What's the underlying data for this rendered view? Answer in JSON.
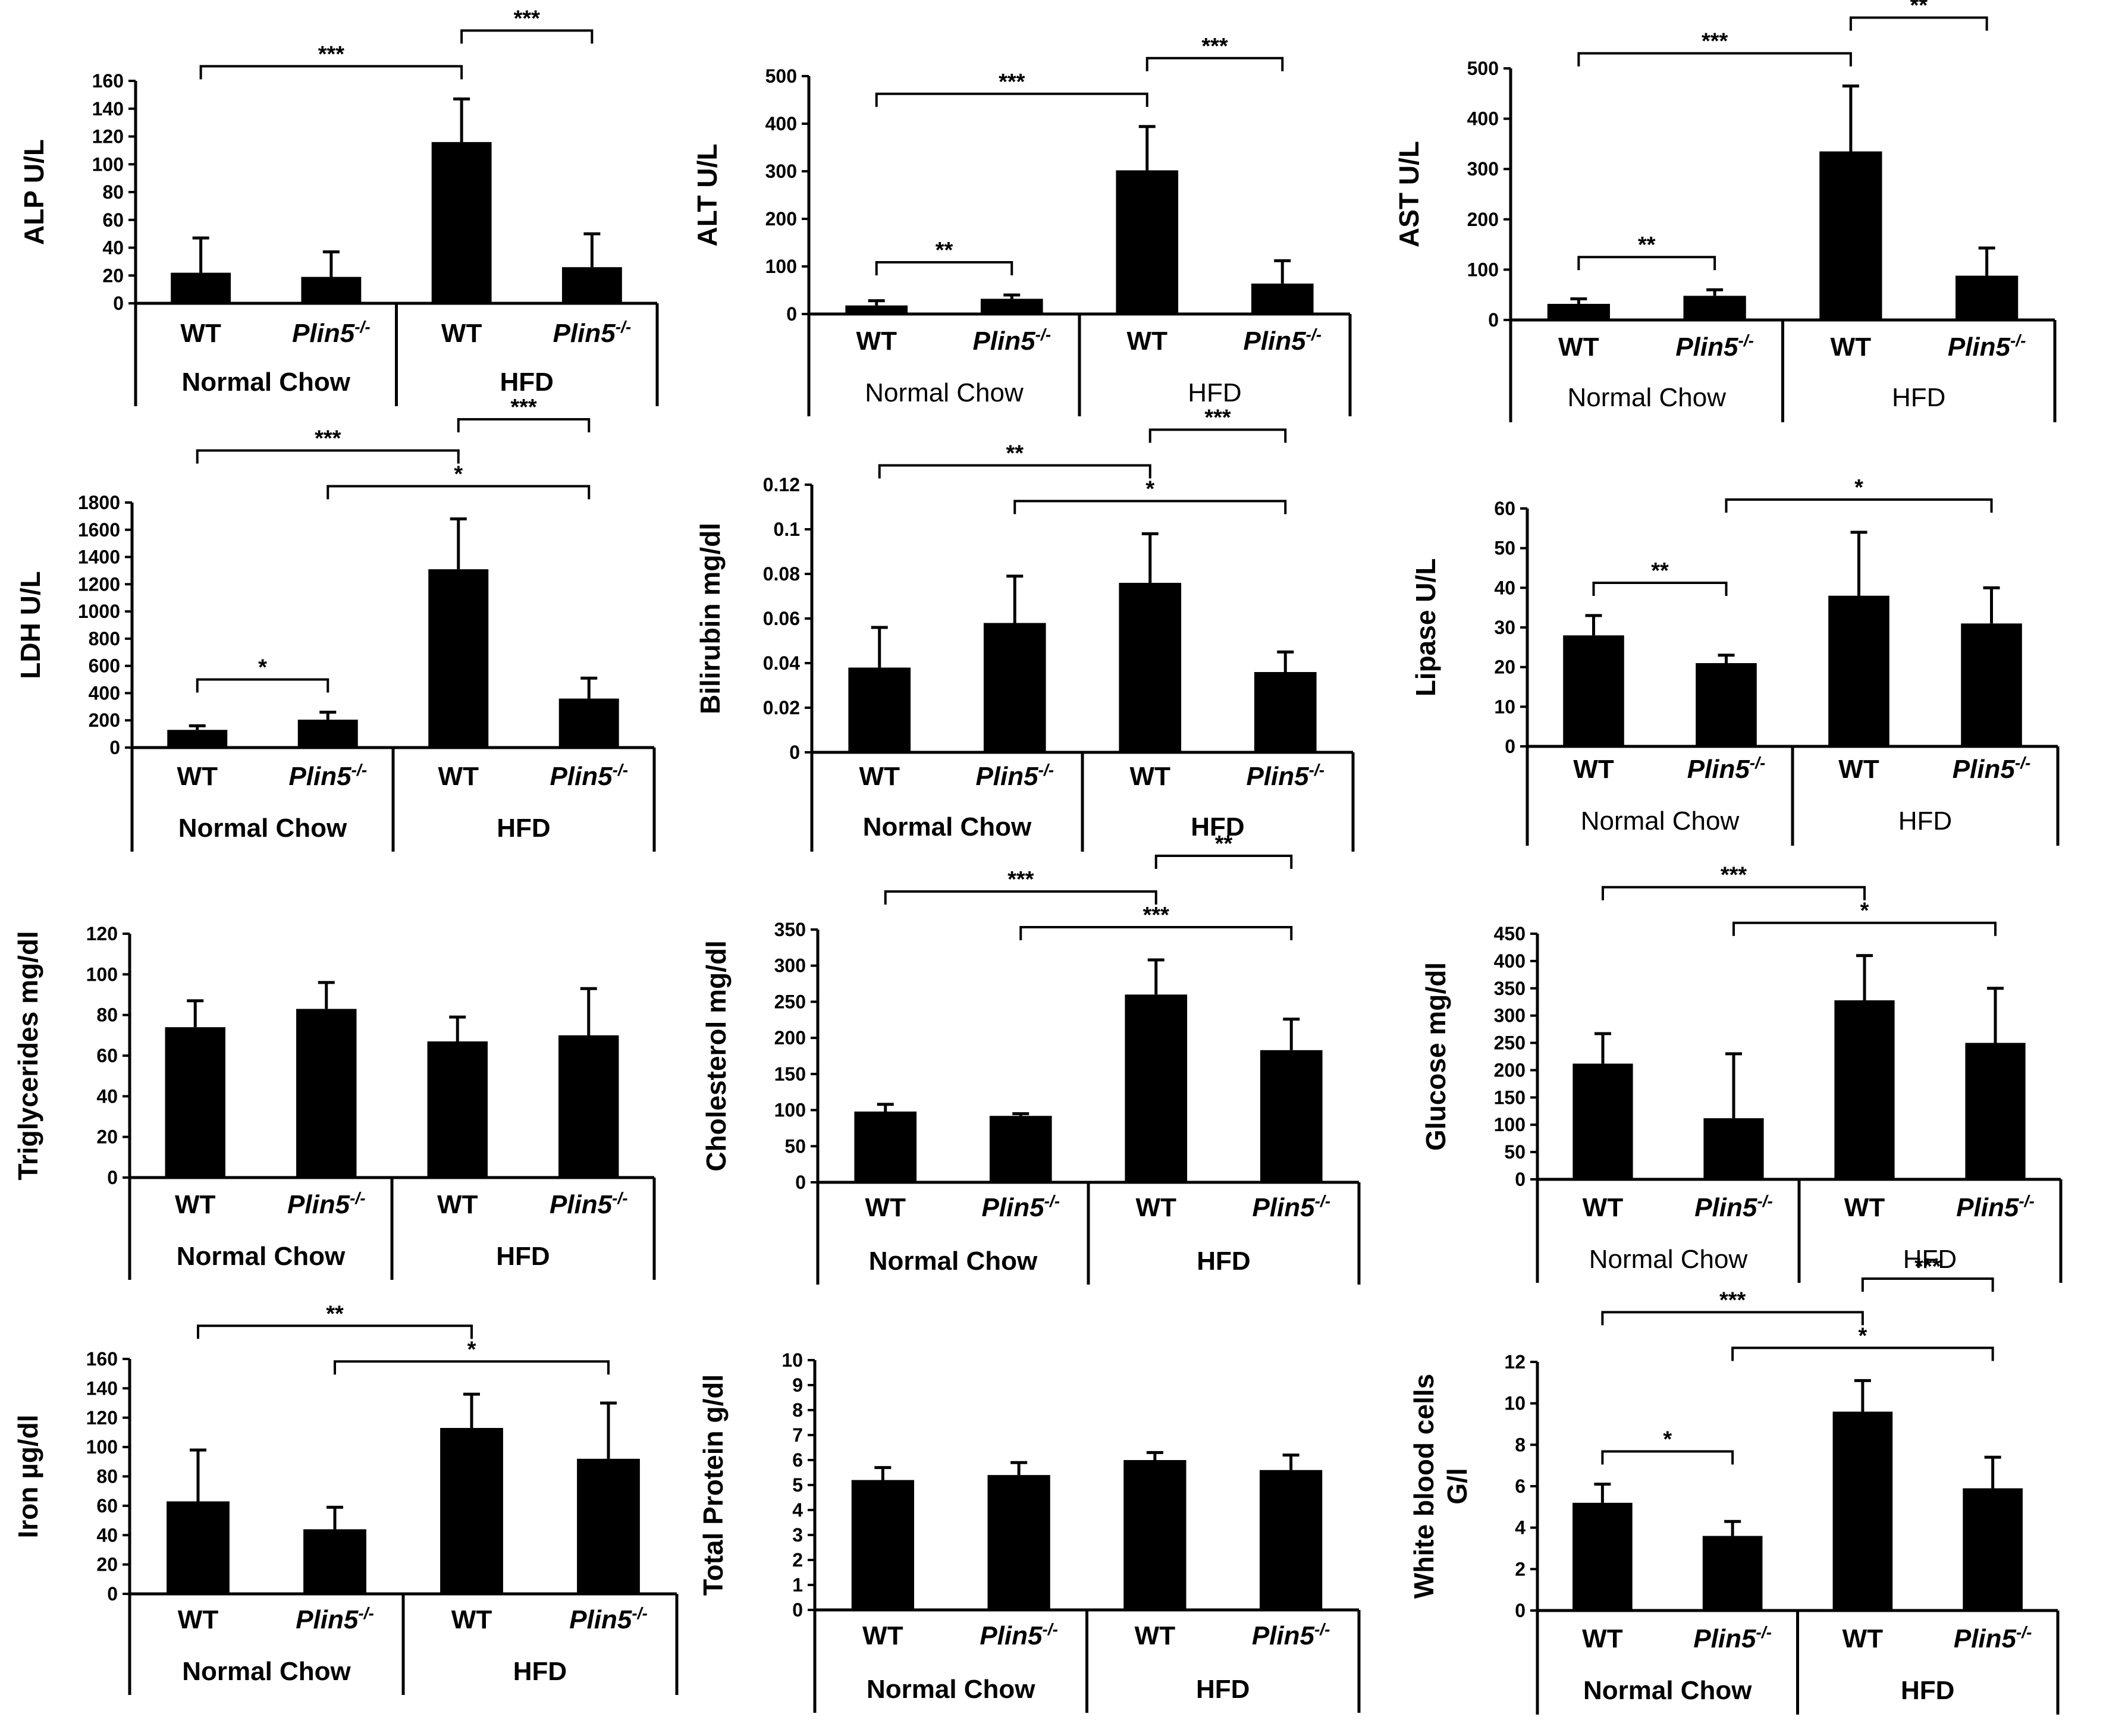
{
  "figure": {
    "group_labels": [
      "Normal Chow",
      "HFD"
    ],
    "bar_labels": [
      {
        "main": "WT",
        "sup": ""
      },
      {
        "main": "Plin5",
        "sup": "-/-"
      },
      {
        "main": "WT",
        "sup": ""
      },
      {
        "main": "Plin5",
        "sup": "-/-"
      }
    ]
  },
  "chart_data": [
    {
      "type": "bar",
      "title": "",
      "ylabel": "ALP U/L",
      "categories": [
        "WT Normal Chow",
        "Plin5-/- Normal Chow",
        "WT HFD",
        "Plin5-/- HFD"
      ],
      "values": [
        22,
        19,
        116,
        26
      ],
      "errors": [
        25,
        18,
        31,
        24
      ],
      "ylim": [
        0,
        160
      ],
      "ticks": [
        0,
        20,
        40,
        60,
        80,
        100,
        120,
        140,
        160
      ],
      "significance": [
        {
          "from": 0,
          "to": 2,
          "label": "***"
        },
        {
          "from": 2,
          "to": 3,
          "label": "***"
        }
      ]
    },
    {
      "type": "bar",
      "title": "",
      "ylabel": "ALT U/L",
      "categories": [
        "WT Normal Chow",
        "Plin5-/- Normal Chow",
        "WT HFD",
        "Plin5-/- HFD"
      ],
      "values": [
        18,
        32,
        302,
        64
      ],
      "errors": [
        10,
        8,
        92,
        48
      ],
      "ylim": [
        0,
        500
      ],
      "ticks": [
        0,
        100,
        200,
        300,
        400,
        500
      ],
      "significance": [
        {
          "from": 0,
          "to": 2,
          "label": "***"
        },
        {
          "from": 2,
          "to": 3,
          "label": "***"
        },
        {
          "from": 0,
          "to": 1,
          "label": "**"
        }
      ]
    },
    {
      "type": "bar",
      "title": "",
      "ylabel": "AST U/L",
      "categories": [
        "WT Normal Chow",
        "Plin5-/- Normal Chow",
        "WT HFD",
        "Plin5-/- HFD"
      ],
      "values": [
        32,
        48,
        335,
        88
      ],
      "errors": [
        10,
        12,
        130,
        55
      ],
      "ylim": [
        0,
        500
      ],
      "ticks": [
        0,
        100,
        200,
        300,
        400,
        500
      ],
      "significance": [
        {
          "from": 0,
          "to": 2,
          "label": "***"
        },
        {
          "from": 2,
          "to": 3,
          "label": "**"
        },
        {
          "from": 0,
          "to": 1,
          "label": "**"
        }
      ]
    },
    {
      "type": "bar",
      "title": "",
      "ylabel": "LDH U/L",
      "categories": [
        "WT Normal Chow",
        "Plin5-/- Normal Chow",
        "WT HFD",
        "Plin5-/- HFD"
      ],
      "values": [
        130,
        205,
        1310,
        360
      ],
      "errors": [
        30,
        55,
        370,
        150
      ],
      "ylim": [
        0,
        1800
      ],
      "ticks": [
        0,
        200,
        400,
        600,
        800,
        1000,
        1200,
        1400,
        1600,
        1800
      ],
      "significance": [
        {
          "from": 1,
          "to": 3,
          "label": "*"
        },
        {
          "from": 0,
          "to": 2,
          "label": "***"
        },
        {
          "from": 2,
          "to": 3,
          "label": "***"
        },
        {
          "from": 0,
          "to": 1,
          "label": "*"
        }
      ]
    },
    {
      "type": "bar",
      "title": "",
      "ylabel": "Bilirubin  mg/dl",
      "categories": [
        "WT Normal Chow",
        "Plin5-/- Normal Chow",
        "WT HFD",
        "Plin5-/- HFD"
      ],
      "values": [
        0.038,
        0.058,
        0.076,
        0.036
      ],
      "errors": [
        0.018,
        0.021,
        0.022,
        0.009
      ],
      "ylim": [
        0,
        0.12
      ],
      "ticks": [
        0,
        0.02,
        0.04,
        0.06,
        0.08,
        0.1,
        0.12
      ],
      "significance": [
        {
          "from": 1,
          "to": 3,
          "label": "*"
        },
        {
          "from": 0,
          "to": 2,
          "label": "**"
        },
        {
          "from": 2,
          "to": 3,
          "label": "***"
        }
      ]
    },
    {
      "type": "bar",
      "title": "",
      "ylabel": "Lipase U/L",
      "categories": [
        "WT Normal Chow",
        "Plin5-/- Normal Chow",
        "WT HFD",
        "Plin5-/- HFD"
      ],
      "values": [
        28,
        21,
        38,
        31
      ],
      "errors": [
        5,
        2,
        16,
        9
      ],
      "ylim": [
        0,
        60
      ],
      "ticks": [
        0,
        10,
        20,
        30,
        40,
        50,
        60
      ],
      "significance": [
        {
          "from": 1,
          "to": 3,
          "label": "*"
        },
        {
          "from": 0,
          "to": 1,
          "label": "**"
        }
      ]
    },
    {
      "type": "bar",
      "title": "",
      "ylabel": "Triglycerides mg/dl",
      "categories": [
        "WT Normal Chow",
        "Plin5-/- Normal Chow",
        "WT HFD",
        "Plin5-/- HFD"
      ],
      "values": [
        74,
        83,
        67,
        70
      ],
      "errors": [
        13,
        13,
        12,
        23
      ],
      "ylim": [
        0,
        120
      ],
      "ticks": [
        0,
        20,
        40,
        60,
        80,
        100,
        120
      ],
      "significance": []
    },
    {
      "type": "bar",
      "title": "",
      "ylabel": "Cholesterol mg/dl",
      "categories": [
        "WT Normal Chow",
        "Plin5-/- Normal Chow",
        "WT HFD",
        "Plin5-/- HFD"
      ],
      "values": [
        98,
        92,
        260,
        183
      ],
      "errors": [
        10,
        3,
        48,
        43
      ],
      "ylim": [
        0,
        350
      ],
      "ticks": [
        0,
        50,
        100,
        150,
        200,
        250,
        300,
        350
      ],
      "significance": [
        {
          "from": 1,
          "to": 3,
          "label": "***"
        },
        {
          "from": 0,
          "to": 2,
          "label": "***"
        },
        {
          "from": 2,
          "to": 3,
          "label": "**"
        }
      ]
    },
    {
      "type": "bar",
      "title": "",
      "ylabel": "Glucose  mg/dl",
      "categories": [
        "WT Normal Chow",
        "Plin5-/- Normal Chow",
        "WT HFD",
        "Plin5-/- HFD"
      ],
      "values": [
        212,
        112,
        328,
        250
      ],
      "errors": [
        55,
        118,
        82,
        100
      ],
      "ylim": [
        0,
        450
      ],
      "ticks": [
        0,
        50,
        100,
        150,
        200,
        250,
        300,
        350,
        400,
        450
      ],
      "significance": [
        {
          "from": 1,
          "to": 3,
          "label": "*"
        },
        {
          "from": 0,
          "to": 2,
          "label": "***"
        }
      ]
    },
    {
      "type": "bar",
      "title": "",
      "ylabel": "Iron  µg/dl",
      "categories": [
        "WT Normal Chow",
        "Plin5-/- Normal Chow",
        "WT HFD",
        "Plin5-/- HFD"
      ],
      "values": [
        63,
        44,
        113,
        92
      ],
      "errors": [
        35,
        15,
        23,
        38
      ],
      "ylim": [
        0,
        160
      ],
      "ticks": [
        0,
        20,
        40,
        60,
        80,
        100,
        120,
        140,
        160
      ],
      "significance": [
        {
          "from": 1,
          "to": 3,
          "label": "*"
        },
        {
          "from": 0,
          "to": 2,
          "label": "**"
        }
      ]
    },
    {
      "type": "bar",
      "title": "",
      "ylabel": "Total Protein g/dl",
      "categories": [
        "WT Normal Chow",
        "Plin5-/- Normal Chow",
        "WT HFD",
        "Plin5-/- HFD"
      ],
      "values": [
        5.2,
        5.4,
        6.0,
        5.6
      ],
      "errors": [
        0.5,
        0.5,
        0.3,
        0.6
      ],
      "ylim": [
        0,
        10
      ],
      "ticks": [
        0,
        1,
        2,
        3,
        4,
        5,
        6,
        7,
        8,
        9,
        10
      ],
      "significance": []
    },
    {
      "type": "bar",
      "title": "",
      "ylabel": "White blood cells G/l",
      "ylabel_lines": [
        "White blood cells",
        "G/l"
      ],
      "categories": [
        "WT Normal Chow",
        "Plin5-/- Normal Chow",
        "WT HFD",
        "Plin5-/- HFD"
      ],
      "values": [
        5.2,
        3.6,
        9.6,
        5.9
      ],
      "errors": [
        0.9,
        0.7,
        1.5,
        1.5
      ],
      "ylim": [
        0,
        12
      ],
      "ticks": [
        0,
        2,
        4,
        6,
        8,
        10,
        12
      ],
      "significance": [
        {
          "from": 1,
          "to": 3,
          "label": "*"
        },
        {
          "from": 0,
          "to": 2,
          "label": "***"
        },
        {
          "from": 2,
          "to": 3,
          "label": "***"
        },
        {
          "from": 0,
          "to": 1,
          "label": "*"
        }
      ]
    }
  ]
}
